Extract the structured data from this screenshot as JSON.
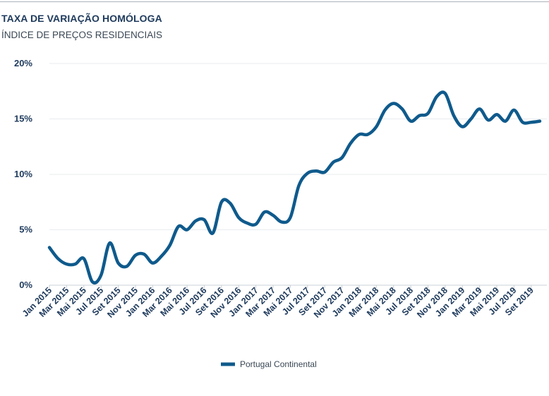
{
  "header": {
    "title": "TAXA DE VARIAÇÃO HOMÓLOGA",
    "subtitle": "ÍNDICE DE PREÇOS RESIDENCIAIS"
  },
  "colors": {
    "line": "#0f5a8c",
    "grid": "#e8ebee",
    "axis": "#c9d0d6",
    "text": "#1e3a5c"
  },
  "chart_data": {
    "type": "line",
    "title": "TAXA DE VARIAÇÃO HOMÓLOGA",
    "subtitle": "ÍNDICE DE PREÇOS RESIDENCIAIS",
    "xlabel": "",
    "ylabel": "",
    "ylim": [
      0,
      20
    ],
    "y_ticks": [
      0,
      5,
      10,
      15,
      20
    ],
    "y_tick_labels": [
      "0%",
      "5%",
      "10%",
      "15%",
      "20%"
    ],
    "grid": true,
    "legend": "bottom",
    "x": [
      "Jan 2015",
      "Fev 2015",
      "Mar 2015",
      "Abr 2015",
      "Mai 2015",
      "Jun 2015",
      "Jul 2015",
      "Ago 2015",
      "Set 2015",
      "Out 2015",
      "Nov 2015",
      "Dez 2015",
      "Jan 2016",
      "Fev 2016",
      "Mar 2016",
      "Abr 2016",
      "Mai 2016",
      "Jun 2016",
      "Jul 2016",
      "Ago 2016",
      "Set 2016",
      "Out 2016",
      "Nov 2016",
      "Dez 2016",
      "Jan 2017",
      "Fev 2017",
      "Mar 2017",
      "Abr 2017",
      "Mai 2017",
      "Jun 2017",
      "Jul 2017",
      "Ago 2017",
      "Set 2017",
      "Out 2017",
      "Nov 2017",
      "Dez 2017",
      "Jan 2018",
      "Fev 2018",
      "Mar 2018",
      "Abr 2018",
      "Mai 2018",
      "Jun 2018",
      "Jul 2018",
      "Ago 2018",
      "Set 2018",
      "Out 2018",
      "Nov 2018",
      "Dez 2018",
      "Jan 2019",
      "Fev 2019",
      "Mar 2019",
      "Abr 2019",
      "Mai 2019",
      "Jun 2019",
      "Jul 2019",
      "Ago 2019",
      "Set 2019",
      "Out 2019"
    ],
    "x_tick_labels": [
      "Jan 2015",
      "Mar 2015",
      "Mai 2015",
      "Jul 2015",
      "Set 2015",
      "Nov 2015",
      "Jan 2016",
      "Mar 2016",
      "Mai 2016",
      "Jul 2016",
      "Set 2016",
      "Nov 2016",
      "Jan 2017",
      "Mar 2017",
      "Mai 2017",
      "Jul 2017",
      "Set 2017",
      "Nov 2017",
      "Jan 2018",
      "Mar 2018",
      "Mai 2018",
      "Jul 2018",
      "Set 2018",
      "Nov 2018",
      "Jan 2019",
      "Mar 2019",
      "Mai 2019",
      "Jul 2019",
      "Set 2019"
    ],
    "series": [
      {
        "name": "Portugal Continental",
        "values": [
          3.4,
          2.4,
          1.9,
          1.9,
          2.4,
          0.3,
          0.9,
          3.8,
          2.0,
          1.7,
          2.7,
          2.8,
          2.0,
          2.6,
          3.6,
          5.3,
          5.0,
          5.8,
          5.9,
          4.7,
          7.5,
          7.4,
          6.1,
          5.6,
          5.5,
          6.6,
          6.3,
          5.7,
          6.1,
          9.0,
          10.1,
          10.3,
          10.2,
          11.1,
          11.5,
          12.8,
          13.6,
          13.6,
          14.3,
          15.8,
          16.4,
          15.9,
          14.8,
          15.3,
          15.5,
          17.0,
          17.3,
          15.3,
          14.3,
          15.0,
          15.9,
          14.9,
          15.4,
          14.8,
          15.8,
          14.7,
          14.7,
          14.8
        ]
      }
    ]
  }
}
